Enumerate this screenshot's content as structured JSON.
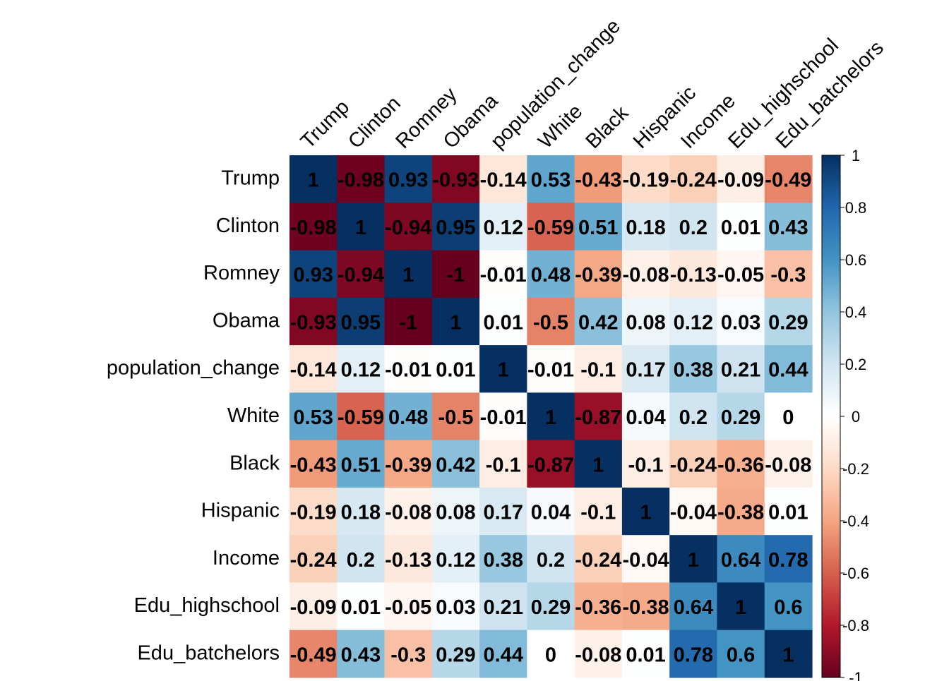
{
  "chart_data": {
    "type": "heatmap",
    "title": "",
    "variables": [
      "Trump",
      "Clinton",
      "Romney",
      "Obama",
      "population_change",
      "White",
      "Black",
      "Hispanic",
      "Income",
      "Edu_highschool",
      "Edu_batchelors"
    ],
    "matrix": [
      [
        1,
        -0.98,
        0.93,
        -0.93,
        -0.14,
        0.53,
        -0.43,
        -0.19,
        -0.24,
        -0.09,
        -0.49
      ],
      [
        -0.98,
        1,
        -0.94,
        0.95,
        0.12,
        -0.59,
        0.51,
        0.18,
        0.2,
        0.01,
        0.43
      ],
      [
        0.93,
        -0.94,
        1,
        -1,
        -0.01,
        0.48,
        -0.39,
        -0.08,
        -0.13,
        -0.05,
        -0.3
      ],
      [
        -0.93,
        0.95,
        -1,
        1,
        0.01,
        -0.5,
        0.42,
        0.08,
        0.12,
        0.03,
        0.29
      ],
      [
        -0.14,
        0.12,
        -0.01,
        0.01,
        1,
        -0.01,
        -0.1,
        0.17,
        0.38,
        0.21,
        0.44
      ],
      [
        0.53,
        -0.59,
        0.48,
        -0.5,
        -0.01,
        1,
        -0.87,
        0.04,
        0.2,
        0.29,
        0
      ],
      [
        -0.43,
        0.51,
        -0.39,
        0.42,
        -0.1,
        -0.87,
        1,
        -0.1,
        -0.24,
        -0.36,
        -0.08
      ],
      [
        -0.19,
        0.18,
        -0.08,
        0.08,
        0.17,
        0.04,
        -0.1,
        1,
        -0.04,
        -0.38,
        0.01
      ],
      [
        -0.24,
        0.2,
        -0.13,
        0.12,
        0.38,
        0.2,
        -0.24,
        -0.04,
        1,
        0.64,
        0.78
      ],
      [
        -0.09,
        0.01,
        -0.05,
        0.03,
        0.21,
        0.29,
        -0.36,
        -0.38,
        0.64,
        1,
        0.6
      ],
      [
        -0.49,
        0.43,
        -0.3,
        0.29,
        0.44,
        0,
        -0.08,
        0.01,
        0.78,
        0.6,
        1
      ]
    ],
    "colorbar": {
      "range": [
        -1,
        1
      ],
      "ticks": [
        1,
        0.8,
        0.6,
        0.4,
        0.2,
        0,
        -0.2,
        -0.4,
        -0.6,
        -0.8,
        -1
      ],
      "tick_labels": [
        "1",
        "0.8",
        "0.6",
        "0.4",
        "0.2",
        "0",
        "-0.2",
        "-0.4",
        "-0.6",
        "-0.8",
        "-1"
      ],
      "palette": [
        "#67001F",
        "#B2182B",
        "#D6604D",
        "#F4A582",
        "#FDDBC7",
        "#FFFFFF",
        "#D1E5F0",
        "#92C5DE",
        "#4393C3",
        "#2166AC",
        "#053061"
      ]
    },
    "cell_label_color": "#000000",
    "grid": false
  }
}
